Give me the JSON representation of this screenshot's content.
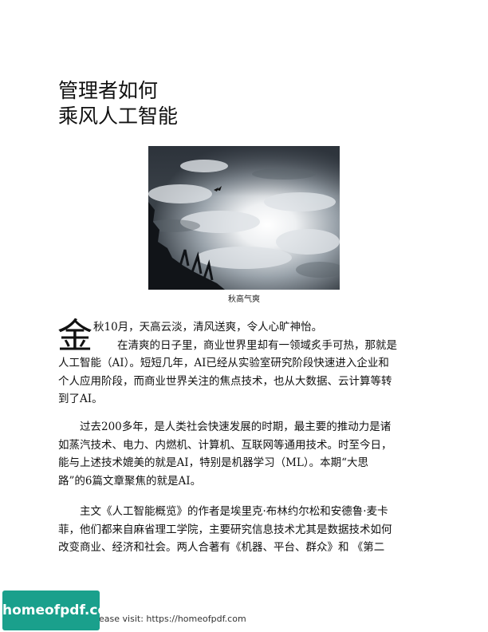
{
  "article": {
    "title_line1": "管理者如何",
    "title_line2": "乘风人工智能",
    "image_caption": "秋高气爽",
    "drop_cap": "金",
    "intro_line1": "秋10月，天高云淡，清风送爽，令人心旷神怡。",
    "intro_line2": "在清爽的日子里，商业世界里却有一领域炙手可热，那就是",
    "intro_rest": [
      "人工智能（AI）。短短几年，AI已经从实验室研究阶段快速进入企业和",
      "个人应用阶段，而商业世界关注的焦点技术，也从大数据、云计算等转",
      "到了AI。"
    ],
    "para2": [
      "过去200多年，是人类社会快速发展的时期，最主要的推动力是诸",
      "如蒸汽技术、电力、内燃机、计算机、互联网等通用技术。时至今日，",
      "能与上述技术媲美的就是AI，特别是机器学习（ML）。本期“大思",
      "路”的6篇文章聚焦的就是AI。"
    ],
    "para3": [
      "主文《人工智能概览》的作者是埃里克·布林约尔松和安德鲁·麦卡",
      "菲，他们都来自麻省理工学院，主要研究信息技术尤其是数据技术如何",
      "改变商业、经济和社会。两人合著有《机器、平台、群众》和 《第二"
    ]
  },
  "footer": {
    "text": "please visit: https://homeofpdf.com",
    "watermark": "homeofpdf.com"
  },
  "colors": {
    "watermark_bg": "#1aa08c"
  }
}
